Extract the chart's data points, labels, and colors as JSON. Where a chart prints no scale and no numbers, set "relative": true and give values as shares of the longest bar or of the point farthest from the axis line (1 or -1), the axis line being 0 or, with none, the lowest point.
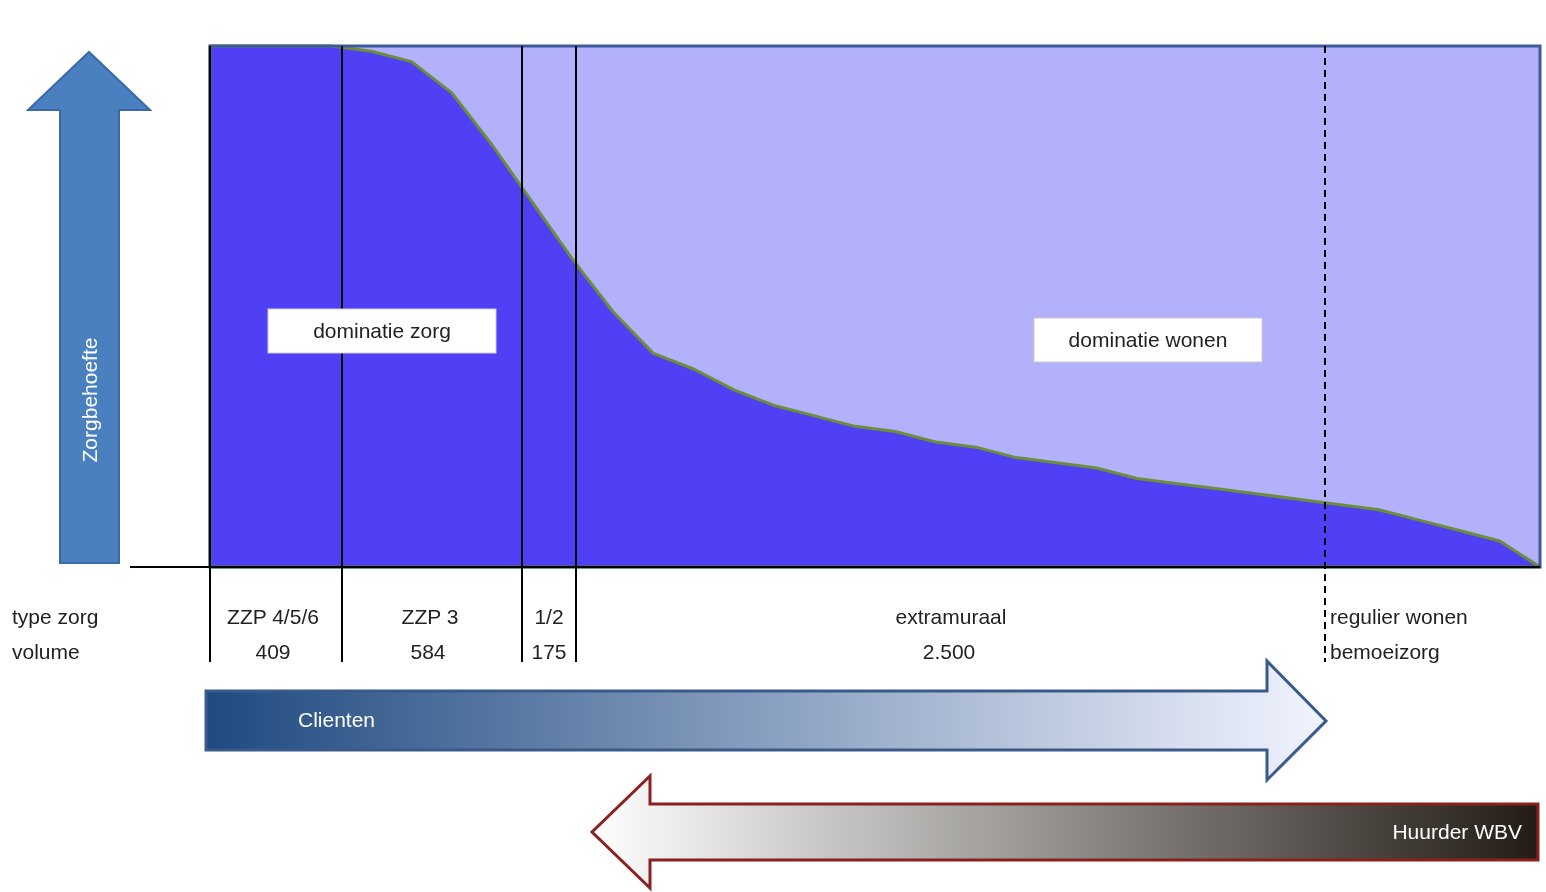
{
  "chart_data": {
    "type": "area",
    "relative": true,
    "categories": [
      null,
      null,
      null,
      null,
      null,
      null,
      null,
      null,
      null,
      null,
      null,
      null,
      null,
      null,
      null,
      null,
      null,
      null,
      null,
      null,
      null,
      null,
      null,
      null,
      null,
      null,
      null,
      null,
      null,
      null,
      null,
      null,
      null,
      null
    ],
    "series": [
      {
        "color": "#5040f5",
        "values": [
          1,
          1,
          1,
          1,
          0.99,
          0.97,
          0.91,
          0.81,
          0.7,
          0.59,
          0.49,
          0.41,
          0.38,
          0.34,
          0.31,
          0.29,
          0.27,
          0.26,
          0.24,
          0.23,
          0.21,
          0.2,
          0.19,
          0.17,
          0.16,
          0.15,
          0.14,
          0.13,
          0.12,
          0.11,
          0.09,
          0.07,
          0.05,
          0
        ]
      }
    ],
    "annotations": [
      "Zorgbehoefte",
      "dominatie zorg",
      "dominatie wonen",
      "type zorg",
      "volume",
      "ZZP 4/5/6",
      "409",
      "ZZP 3",
      "584",
      "1/2",
      "175",
      "extramuraal",
      "2.500",
      "regulier wonen",
      "bemoeizorg",
      "Clienten",
      "Huurder WBV"
    ]
  }
}
